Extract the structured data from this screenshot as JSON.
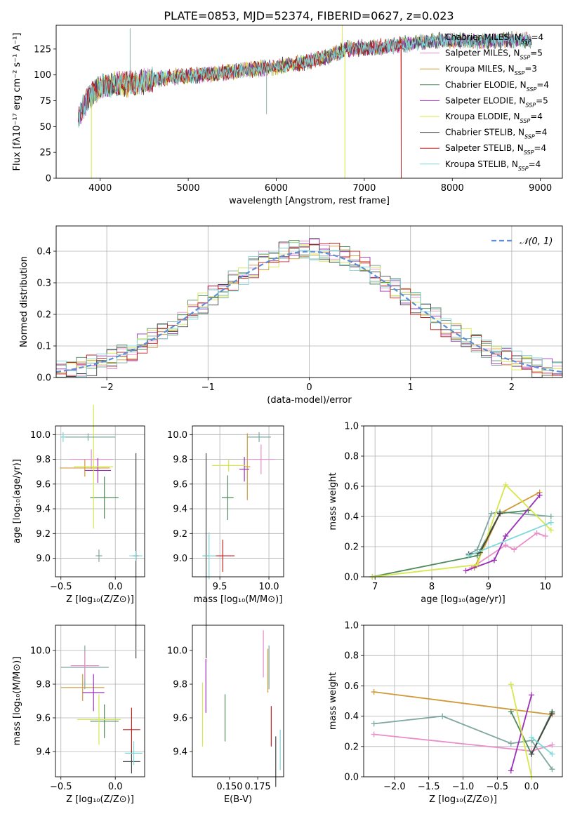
{
  "title": "PLATE=0853, MJD=52374, FIBERID=0627, z=0.023",
  "models": [
    {
      "name": "Chabrier MILES",
      "nssp": "4",
      "color": "#7fa8a0"
    },
    {
      "name": "Salpeter MILES",
      "nssp": "5",
      "color": "#e88ecb"
    },
    {
      "name": "Kroupa MILES",
      "nssp": "3",
      "color": "#d09a3a"
    },
    {
      "name": "Chabrier ELODIE",
      "nssp": "4",
      "color": "#4f8a5b"
    },
    {
      "name": "Salpeter ELODIE",
      "nssp": "5",
      "color": "#9b30b8"
    },
    {
      "name": "Kroupa ELODIE",
      "nssp": "4",
      "color": "#d6e84a"
    },
    {
      "name": "Chabrier STELIB",
      "nssp": "4",
      "color": "#444444"
    },
    {
      "name": "Salpeter STELIB",
      "nssp": "4",
      "color": "#c81e1e"
    },
    {
      "name": "Kroupa STELIB",
      "nssp": "4",
      "color": "#7fd8d8"
    }
  ],
  "chart_data": [
    {
      "panel": "spectrum",
      "type": "line",
      "xlabel": "wavelength [Angstrom, rest frame]",
      "ylabel": "Flux [fλ10⁻¹⁷ erg cm⁻² s⁻¹ A⁻¹]",
      "xlim": [
        3500,
        9250
      ],
      "ylim": [
        0,
        148
      ],
      "xticks": [
        4000,
        5000,
        6000,
        7000,
        8000,
        9000
      ],
      "yticks": [
        0,
        25,
        50,
        75,
        100,
        125
      ],
      "trend": [
        [
          3750,
          60
        ],
        [
          3850,
          75
        ],
        [
          3950,
          85
        ],
        [
          4050,
          90
        ],
        [
          4400,
          92
        ],
        [
          4800,
          98
        ],
        [
          5200,
          100
        ],
        [
          5600,
          104
        ],
        [
          6000,
          108
        ],
        [
          6300,
          112
        ],
        [
          6600,
          118
        ],
        [
          6800,
          125
        ],
        [
          7200,
          127
        ],
        [
          7600,
          131
        ],
        [
          7900,
          134
        ],
        [
          8300,
          132
        ],
        [
          8700,
          134
        ],
        [
          8900,
          133
        ]
      ],
      "features": [
        {
          "x": 4340,
          "y": 145,
          "series": "Chabrier MILES"
        },
        {
          "x": 5890,
          "y": 62,
          "series": "Chabrier MILES"
        },
        {
          "x": 3900,
          "y": 0,
          "series": "Kroupa ELODIE"
        },
        {
          "x": 6780,
          "y": 0,
          "series": "Kroupa ELODIE"
        },
        {
          "x": 7420,
          "y": 0,
          "series": "Salpeter STELIB"
        },
        {
          "x": 6750,
          "y": 148,
          "series": "Kroupa ELODIE"
        }
      ],
      "cutoffs": {
        "Kroupa ELODIE": [
          3900,
          6780
        ],
        "Salpeter STELIB": [
          3750,
          7420
        ]
      },
      "legend": "top-right"
    },
    {
      "panel": "residuals",
      "type": "histogram",
      "xlabel": "(data-model)/error",
      "ylabel": "Normed distribution",
      "xlim": [
        -2.5,
        2.5
      ],
      "ylim": [
        0,
        0.48
      ],
      "xticks": [
        -2,
        -1,
        0,
        1,
        2
      ],
      "yticks": [
        0.0,
        0.1,
        0.2,
        0.3,
        0.4
      ],
      "bin_width": 0.1,
      "reference_label": "𝒩(0, 1)",
      "reference": {
        "mu": 0,
        "sigma": 1
      },
      "legend": "top-right",
      "grid": true
    },
    {
      "panel": "Z-age",
      "type": "errorbar",
      "xlabel": "Z [log₁₀(Z/Z⊙)]",
      "ylabel": "age [log₁₀(age/yr)]",
      "xlim": [
        -0.55,
        0.27
      ],
      "ylim": [
        8.85,
        10.07
      ],
      "xticks": [
        -0.5,
        0.0
      ],
      "yticks": [
        9.0,
        9.2,
        9.4,
        9.6,
        9.8,
        10.0
      ],
      "points": [
        {
          "series": "Chabrier MILES",
          "x": -0.15,
          "xerr": 0.03,
          "y": 9.02,
          "yerr": 0.05
        },
        {
          "series": "Salpeter MILES",
          "x": -0.22,
          "xerr": 0.2,
          "y": 9.8,
          "yerr": 0.08
        },
        {
          "series": "Kroupa MILES",
          "x": -0.28,
          "xerr": 0.23,
          "y": 9.73,
          "yerr": 0.07
        },
        {
          "series": "Chabrier ELODIE",
          "x": -0.1,
          "xerr": 0.13,
          "y": 9.49,
          "yerr": 0.17
        },
        {
          "series": "Salpeter ELODIE",
          "x": -0.16,
          "xerr": 0.12,
          "y": 9.71,
          "yerr": 0.1
        },
        {
          "series": "Kroupa ELODIE",
          "x": -0.2,
          "xerr": 0.18,
          "y": 9.74,
          "yerr": 0.5
        },
        {
          "series": "Chabrier STELIB",
          "x": 0.19,
          "xerr": 0.02,
          "y": 9.02,
          "yerr": 0.83
        },
        {
          "series": "Salpeter STELIB",
          "x": 0.19,
          "xerr": 0.03,
          "y": 9.02,
          "yerr": 0.04
        },
        {
          "series": "Kroupa STELIB",
          "x": 0.19,
          "xerr": 0.06,
          "y": 9.02,
          "yerr": 0.04
        },
        {
          "series": "Chabrier MILES",
          "x": -0.25,
          "xerr": 0.25,
          "y": 9.98,
          "yerr": 0.03
        },
        {
          "series": "Kroupa STELIB",
          "x": -0.48,
          "xerr": 0.02,
          "y": 9.98,
          "yerr": 0.04
        }
      ]
    },
    {
      "panel": "mass-age",
      "type": "errorbar",
      "xlabel": "mass [log₁₀(M/M⊙)]",
      "ylabel": "",
      "xlim": [
        9.22,
        10.15
      ],
      "ylim": [
        8.85,
        10.07
      ],
      "xticks": [
        9.5,
        10.0
      ],
      "yticks": [
        9.0,
        9.2,
        9.4,
        9.6,
        9.8,
        10.0
      ],
      "points": [
        {
          "series": "Chabrier MILES",
          "x": 9.9,
          "xerr": 0.12,
          "y": 9.98,
          "yerr": 0.04
        },
        {
          "series": "Salpeter MILES",
          "x": 9.92,
          "xerr": 0.14,
          "y": 9.8,
          "yerr": 0.12
        },
        {
          "series": "Kroupa MILES",
          "x": 9.78,
          "xerr": 0.03,
          "y": 9.74,
          "yerr": 0.27
        },
        {
          "series": "Chabrier ELODIE",
          "x": 9.58,
          "xerr": 0.06,
          "y": 9.49,
          "yerr": 0.18
        },
        {
          "series": "Salpeter ELODIE",
          "x": 9.75,
          "xerr": 0.05,
          "y": 9.72,
          "yerr": 0.1
        },
        {
          "series": "Kroupa ELODIE",
          "x": 9.59,
          "xerr": 0.17,
          "y": 9.75,
          "yerr": 0.05
        },
        {
          "series": "Chabrier STELIB",
          "x": 9.36,
          "xerr": 0.03,
          "y": 9.02,
          "yerr": 0.83
        },
        {
          "series": "Salpeter STELIB",
          "x": 9.53,
          "xerr": 0.12,
          "y": 9.02,
          "yerr": 0.13
        },
        {
          "series": "Kroupa STELIB",
          "x": 9.39,
          "xerr": 0.07,
          "y": 9.02,
          "yerr": 0.19
        }
      ]
    },
    {
      "panel": "age-weight",
      "type": "line",
      "xlabel": "age [log₁₀(age/yr)]",
      "ylabel": "mass weight",
      "xlim": [
        6.8,
        10.3
      ],
      "ylim": [
        0,
        1.0
      ],
      "xticks": [
        7,
        8,
        9,
        10
      ],
      "yticks": [
        0.0,
        0.2,
        0.4,
        0.6,
        0.8,
        1.0
      ],
      "grid": true,
      "series": [
        {
          "name": "Chabrier MILES",
          "points": [
            [
              8.65,
              0.15
            ],
            [
              8.8,
              0.18
            ],
            [
              9.05,
              0.42
            ],
            [
              9.2,
              0.43
            ],
            [
              10.1,
              0.4
            ]
          ]
        },
        {
          "name": "Salpeter MILES",
          "points": [
            [
              8.7,
              0.06
            ],
            [
              9.3,
              0.21
            ],
            [
              9.45,
              0.18
            ],
            [
              9.85,
              0.29
            ],
            [
              10.0,
              0.27
            ]
          ]
        },
        {
          "name": "Kroupa MILES",
          "points": [
            [
              8.75,
              0.06
            ],
            [
              9.2,
              0.42
            ],
            [
              9.9,
              0.56
            ]
          ]
        },
        {
          "name": "Chabrier ELODIE",
          "points": [
            [
              6.95,
              0.0
            ],
            [
              8.8,
              0.14
            ],
            [
              9.2,
              0.42
            ],
            [
              9.7,
              0.44
            ]
          ]
        },
        {
          "name": "Salpeter ELODIE",
          "points": [
            [
              8.6,
              0.04
            ],
            [
              9.1,
              0.11
            ],
            [
              9.3,
              0.27
            ],
            [
              9.9,
              0.54
            ]
          ]
        },
        {
          "name": "Kroupa ELODIE",
          "points": [
            [
              6.95,
              0.0
            ],
            [
              8.8,
              0.08
            ],
            [
              9.3,
              0.61
            ],
            [
              10.1,
              0.31
            ]
          ]
        },
        {
          "name": "Chabrier STELIB",
          "points": [
            [
              8.65,
              0.15
            ],
            [
              8.85,
              0.16
            ],
            [
              9.2,
              0.42
            ]
          ]
        },
        {
          "name": "Kroupa STELIB",
          "points": [
            [
              8.65,
              0.14
            ],
            [
              10.1,
              0.36
            ]
          ]
        }
      ]
    },
    {
      "panel": "Z-mass",
      "type": "errorbar",
      "xlabel": "Z [log₁₀(Z/Z⊙)]",
      "ylabel": "mass [log₁₀(M/M⊙)]",
      "xlim": [
        -0.55,
        0.27
      ],
      "ylim": [
        9.25,
        10.15
      ],
      "xticks": [
        -0.5,
        0.0
      ],
      "yticks": [
        9.4,
        9.6,
        9.8,
        10.0
      ],
      "points": [
        {
          "series": "Chabrier MILES",
          "x": -0.28,
          "xerr": 0.22,
          "y": 9.9,
          "yerr": 0.13
        },
        {
          "series": "Salpeter MILES",
          "x": -0.28,
          "xerr": 0.13,
          "y": 9.91,
          "yerr": 0.08
        },
        {
          "series": "Kroupa MILES",
          "x": -0.3,
          "xerr": 0.2,
          "y": 9.78,
          "yerr": 0.08
        },
        {
          "series": "Chabrier ELODIE",
          "x": -0.1,
          "xerr": 0.13,
          "y": 9.58,
          "yerr": 0.1
        },
        {
          "series": "Salpeter ELODIE",
          "x": -0.2,
          "xerr": 0.1,
          "y": 9.75,
          "yerr": 0.11
        },
        {
          "series": "Kroupa ELODIE",
          "x": -0.15,
          "xerr": 0.2,
          "y": 9.59,
          "yerr": 0.15
        },
        {
          "series": "Chabrier STELIB",
          "x": 0.15,
          "xerr": 0.08,
          "y": 9.34,
          "yerr": 0.07
        },
        {
          "series": "Salpeter STELIB",
          "x": 0.15,
          "xerr": 0.08,
          "y": 9.53,
          "yerr": 0.13
        },
        {
          "series": "Kroupa STELIB",
          "x": 0.17,
          "xerr": 0.08,
          "y": 9.39,
          "yerr": 0.07
        }
      ]
    },
    {
      "panel": "ebv-mass",
      "type": "errorbar",
      "xlabel": "E(B-V)",
      "ylabel": "",
      "xlim": [
        0.117,
        0.198
      ],
      "ylim": [
        9.25,
        10.15
      ],
      "xticks": [
        0.15,
        0.175
      ],
      "yticks": [
        9.4,
        9.6,
        9.8,
        10.0
      ],
      "points": [
        {
          "series": "Chabrier MILES",
          "x": 0.185,
          "xerr": 0,
          "y": 9.9,
          "yerr": 0.13
        },
        {
          "series": "Salpeter MILES",
          "x": 0.18,
          "xerr": 0,
          "y": 9.98,
          "yerr": 0.14
        },
        {
          "series": "Kroupa MILES",
          "x": 0.184,
          "xerr": 0,
          "y": 9.88,
          "yerr": 0.13
        },
        {
          "series": "Chabrier ELODIE",
          "x": 0.146,
          "xerr": 0,
          "y": 9.6,
          "yerr": 0.14
        },
        {
          "series": "Salpeter ELODIE",
          "x": 0.129,
          "xerr": 0,
          "y": 9.79,
          "yerr": 0.16
        },
        {
          "series": "Kroupa ELODIE",
          "x": 0.126,
          "xerr": 0,
          "y": 9.62,
          "yerr": 0.19
        },
        {
          "series": "Chabrier STELIB",
          "x": 0.191,
          "xerr": 0,
          "y": 9.34,
          "yerr": 0.15
        },
        {
          "series": "Salpeter STELIB",
          "x": 0.187,
          "xerr": 0,
          "y": 9.55,
          "yerr": 0.12
        },
        {
          "series": "Kroupa STELIB",
          "x": 0.195,
          "xerr": 0,
          "y": 9.41,
          "yerr": 0.12
        }
      ]
    },
    {
      "panel": "Z-weight",
      "type": "line",
      "xlabel": "Z [log₁₀(Z/Z⊙)]",
      "ylabel": "mass weight",
      "xlim": [
        -2.45,
        0.45
      ],
      "ylim": [
        0,
        1.0
      ],
      "xticks": [
        -2.0,
        -1.5,
        -1.0,
        -0.5,
        0.0
      ],
      "yticks": [
        0.0,
        0.2,
        0.4,
        0.6,
        0.8,
        1.0
      ],
      "grid": true,
      "series": [
        {
          "name": "Chabrier MILES",
          "points": [
            [
              -2.3,
              0.35
            ],
            [
              -1.3,
              0.4
            ],
            [
              -0.3,
              0.22
            ],
            [
              0.0,
              0.24
            ],
            [
              0.3,
              0.05
            ]
          ]
        },
        {
          "name": "Salpeter MILES",
          "points": [
            [
              -2.3,
              0.28
            ],
            [
              0.0,
              0.17
            ],
            [
              0.3,
              0.21
            ]
          ]
        },
        {
          "name": "Kroupa MILES",
          "points": [
            [
              -2.3,
              0.56
            ],
            [
              0.3,
              0.41
            ]
          ]
        },
        {
          "name": "Chabrier ELODIE",
          "points": [
            [
              -0.3,
              0.43
            ],
            [
              0.0,
              0.15
            ],
            [
              0.3,
              0.43
            ]
          ]
        },
        {
          "name": "Salpeter ELODIE",
          "points": [
            [
              -0.3,
              0.04
            ],
            [
              0.0,
              0.54
            ]
          ]
        },
        {
          "name": "Kroupa ELODIE",
          "points": [
            [
              -0.3,
              0.61
            ],
            [
              0.0,
              0.0
            ]
          ]
        },
        {
          "name": "Chabrier STELIB",
          "points": [
            [
              0.0,
              0.15
            ],
            [
              0.3,
              0.42
            ]
          ]
        },
        {
          "name": "Kroupa STELIB",
          "points": [
            [
              0.0,
              0.26
            ],
            [
              0.3,
              0.15
            ]
          ]
        }
      ]
    }
  ]
}
